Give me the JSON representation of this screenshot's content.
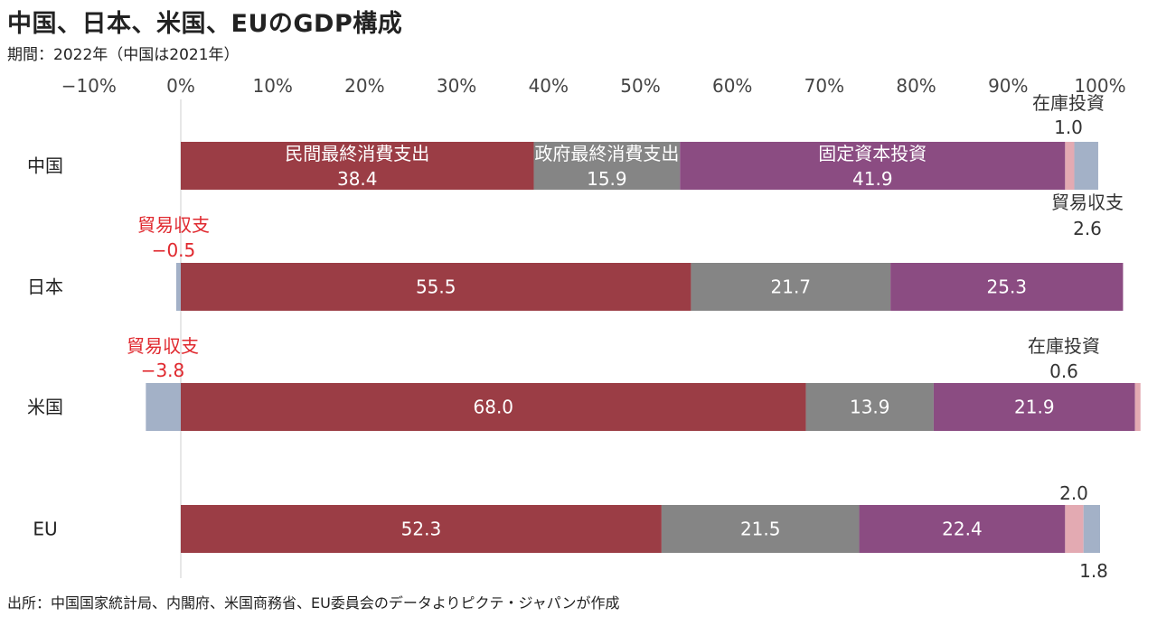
{
  "title": "中国、日本、米国、EUのGDP構成",
  "subtitle": "期間：2022年（中国は2021年）",
  "source": "出所：中国国家統計局、内閣府、米国商務省、EU委員会のデータよりピクテ・ジャパンが作成",
  "chart_data": {
    "type": "bar",
    "orientation": "horizontal",
    "stacked": true,
    "xlim": [
      -10,
      100
    ],
    "xticks": [
      "−10%",
      "0%",
      "10%",
      "20%",
      "30%",
      "40%",
      "50%",
      "60%",
      "70%",
      "80%",
      "90%",
      "100%"
    ],
    "categories": [
      "中国",
      "日本",
      "米国",
      "EU"
    ],
    "segment_order": [
      "private",
      "government",
      "fixed",
      "inventory",
      "trade"
    ],
    "colors": {
      "private": "#9b3d45",
      "government": "#858585",
      "fixed": "#8b4c82",
      "inventory": "#e3aab2",
      "trade": "#a3b1c7"
    },
    "segment_labels": {
      "private": "民間最終消費支出",
      "government": "政府最終消費支出",
      "fixed": "固定資本投資"
    },
    "rows": [
      {
        "category": "中国",
        "private": 38.4,
        "government": 15.9,
        "fixed": 41.9,
        "inventory": 1.0,
        "trade": 2.6
      },
      {
        "category": "日本",
        "private": 55.5,
        "government": 21.7,
        "fixed": 25.3,
        "inventory": 0.0,
        "trade": -0.5
      },
      {
        "category": "米国",
        "private": 68.0,
        "government": 13.9,
        "fixed": 21.9,
        "inventory": 0.6,
        "trade": -3.8
      },
      {
        "category": "EU",
        "private": 52.3,
        "government": 21.5,
        "fixed": 22.4,
        "inventory": 2.0,
        "trade": 1.8
      }
    ],
    "annotations": {
      "inventory_label": "在庫投資",
      "trade_label": "貿易収支",
      "china_inventory": "1.0",
      "china_trade": "2.6",
      "japan_trade": "−0.5",
      "us_inventory": "0.6",
      "us_trade": "−3.8",
      "eu_inventory": "2.0",
      "eu_trade": "1.8"
    }
  }
}
